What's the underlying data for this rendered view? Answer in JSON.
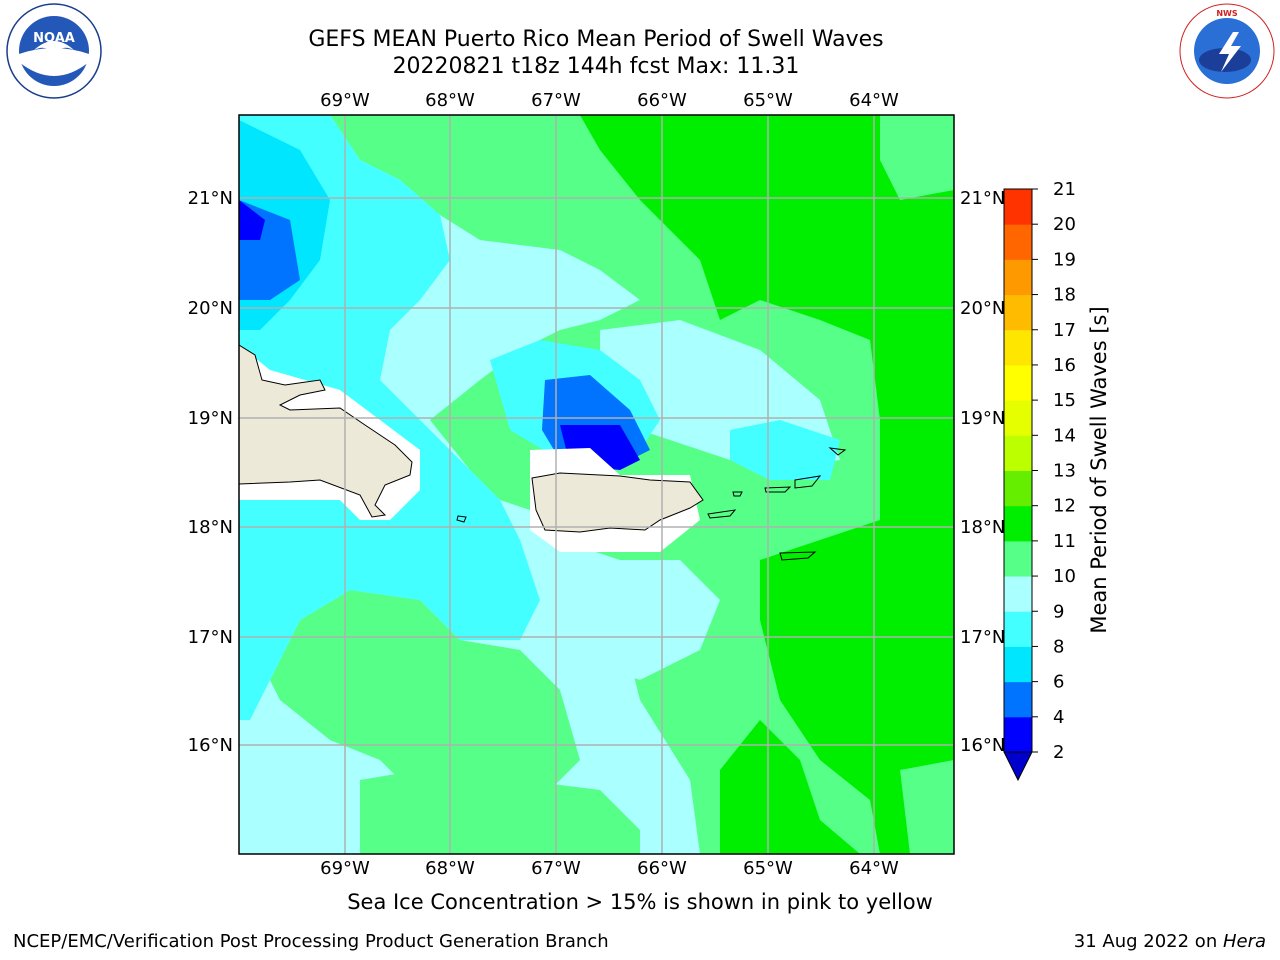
{
  "header": {
    "title_line1": "GEFS MEAN Puerto Rico Mean Period of Swell Waves",
    "title_line2": "20220821 t18z 144h fcst   Max: 11.31"
  },
  "logos": {
    "left": {
      "icon": "noaa-logo",
      "text": "NOAA"
    },
    "right": {
      "icon": "nws-logo",
      "text": "NATIONAL WEATHER SERVICE"
    }
  },
  "map": {
    "lon_labels": [
      "69°W",
      "68°W",
      "67°W",
      "66°W",
      "65°W",
      "64°W"
    ],
    "lat_labels": [
      "21°N",
      "20°N",
      "19°N",
      "18°N",
      "17°N",
      "16°N"
    ],
    "land_color": "#ede9d9",
    "grid": true
  },
  "colorbar": {
    "label": "Mean Period of Swell Waves [s]",
    "ticks": [
      "2",
      "4",
      "6",
      "8",
      "9",
      "10",
      "11",
      "12",
      "13",
      "14",
      "15",
      "16",
      "17",
      "18",
      "19",
      "20",
      "21"
    ],
    "colors": [
      "#0000ff",
      "#0073ff",
      "#00e6ff",
      "#44ffff",
      "#aaffff",
      "#55ff88",
      "#00ee00",
      "#66ee00",
      "#bbff00",
      "#e6ff00",
      "#ffff00",
      "#ffe600",
      "#ffbb00",
      "#ff9900",
      "#ff6600",
      "#ff3300"
    ],
    "under_color": "#0000cc"
  },
  "note": "Sea Ice Concentration > 15% is shown in pink to yellow",
  "footer": {
    "left": "NCEP/EMC/Verification Post Processing Product Generation Branch",
    "date": "31 Aug 2022 on ",
    "machine": "Hera"
  }
}
